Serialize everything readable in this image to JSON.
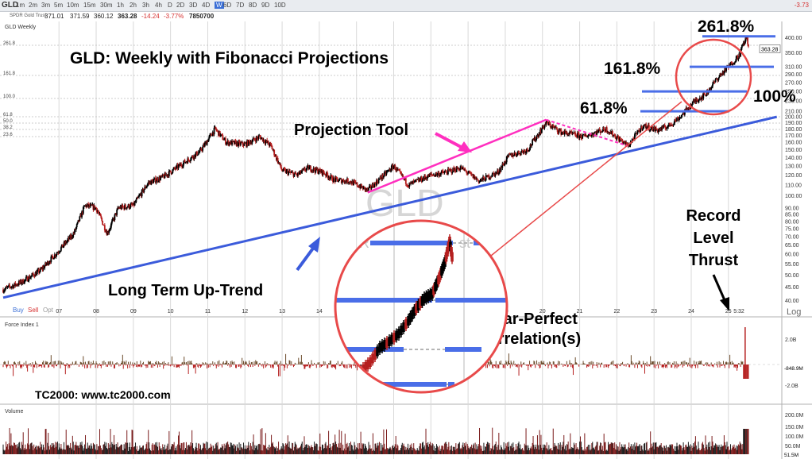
{
  "toolbar": {
    "symbol": "GLD",
    "timeframes": [
      "1m",
      "2m",
      "3m",
      "5m",
      "10m",
      "15m",
      "30m",
      "1h",
      "2h",
      "3h",
      "4h",
      "D",
      "2D",
      "3D",
      "4D",
      "W",
      "6D",
      "7D",
      "8D",
      "9D",
      "10D"
    ],
    "active_timeframe": "W",
    "right_value": "-3.73"
  },
  "quote": {
    "name": "SPDR Gold Trust",
    "open": "371.01",
    "high": "371.59",
    "low": "360.12",
    "close": "363.28",
    "change": "-14.24",
    "change_pct": "-3.77%",
    "volume": "7850700"
  },
  "pane_labels": {
    "price": "GLD Weekly",
    "force": "Force Index 1",
    "volume": "Volume"
  },
  "buy_sell": {
    "buy": "Buy",
    "sell": "Sell",
    "opt": "Opt"
  },
  "annotations": {
    "title": "GLD:  Weekly with Fibonacci Projections",
    "projection_tool": "Projection Tool",
    "long_term": "Long Term Up-Trend",
    "fib_2618": "261.8%",
    "fib_1618": "161.8%",
    "fib_618": "61.8%",
    "fib_100": "100%",
    "record_line1": "Record",
    "record_line2": "Level",
    "record_line3": "Thrust",
    "near_perfect_line1": "Near-Perfect",
    "near_perfect_line2": "Correlation(s)",
    "source": "TC2000:  www.tc2000.com",
    "watermark_symbol": "GLD",
    "watermark_name_partial": "SPDR",
    "watermark_name_tail": "st"
  },
  "colors": {
    "trendline": "#3b5bdb",
    "projection": "#ff2fbf",
    "fib_level": "#4a6ee8",
    "circle": "#e84a4a",
    "candle_up": "#000000",
    "candle_down": "#b51f1f",
    "price_box": "#d63030"
  },
  "chart_data": {
    "type": "candlestick",
    "title": "GLD:  Weekly with Fibonacci Projections",
    "x_tick_labels": [
      "07",
      "08",
      "09",
      "10",
      "11",
      "12",
      "13",
      "14",
      "15",
      "16",
      "17",
      "18",
      "19",
      "20",
      "21",
      "22",
      "23",
      "24",
      "25"
    ],
    "x_tick_years": [
      2007,
      2008,
      2009,
      2010,
      2011,
      2012,
      2013,
      2014,
      2015,
      2016,
      2017,
      2018,
      2019,
      2020,
      2021,
      2022,
      2023,
      2024,
      2025
    ],
    "x_last_label": "5:32",
    "y_scale": "log",
    "y_ticks": [
      400,
      350,
      310,
      290,
      270,
      250,
      230,
      210,
      200,
      190,
      180,
      170,
      160,
      150,
      140,
      130,
      120,
      110,
      100,
      90,
      85,
      80,
      75,
      70,
      65,
      60,
      55,
      50,
      45,
      40
    ],
    "y_tick_labels": [
      "400.00",
      "350.00",
      "310.00",
      "290.00",
      "270.00",
      "250.00",
      "230.00",
      "210.00",
      "200.00",
      "190.00",
      "180.00",
      "170.00",
      "160.00",
      "150.00",
      "140.00",
      "130.00",
      "120.00",
      "110.00",
      "100.00",
      "90.00",
      "85.00",
      "80.00",
      "75.00",
      "70.00",
      "65.00",
      "60.00",
      "55.00",
      "50.00",
      "45.00",
      "40.00"
    ],
    "y_axis_log_button": "Log",
    "last_price_label": "363.28",
    "price_path": [
      [
        2006.0,
        44
      ],
      [
        2006.5,
        47
      ],
      [
        2007.0,
        52
      ],
      [
        2007.5,
        62
      ],
      [
        2007.9,
        72
      ],
      [
        2008.2,
        92
      ],
      [
        2008.5,
        90
      ],
      [
        2008.8,
        72
      ],
      [
        2009.1,
        90
      ],
      [
        2009.5,
        92
      ],
      [
        2009.9,
        112
      ],
      [
        2010.3,
        118
      ],
      [
        2010.9,
        135
      ],
      [
        2011.3,
        148
      ],
      [
        2011.7,
        180
      ],
      [
        2012.0,
        160
      ],
      [
        2012.5,
        157
      ],
      [
        2012.9,
        168
      ],
      [
        2013.2,
        155
      ],
      [
        2013.5,
        125
      ],
      [
        2013.9,
        120
      ],
      [
        2014.2,
        128
      ],
      [
        2014.6,
        123
      ],
      [
        2014.9,
        115
      ],
      [
        2015.3,
        114
      ],
      [
        2015.8,
        105
      ],
      [
        2016.5,
        130
      ],
      [
        2016.9,
        110
      ],
      [
        2017.5,
        120
      ],
      [
        2017.9,
        123
      ],
      [
        2018.3,
        128
      ],
      [
        2018.8,
        114
      ],
      [
        2019.3,
        123
      ],
      [
        2019.6,
        142
      ],
      [
        2020.1,
        150
      ],
      [
        2020.6,
        190
      ],
      [
        2021.0,
        175
      ],
      [
        2021.6,
        168
      ],
      [
        2022.2,
        180
      ],
      [
        2022.8,
        155
      ],
      [
        2023.2,
        185
      ],
      [
        2023.6,
        178
      ],
      [
        2023.9,
        185
      ],
      [
        2024.2,
        200
      ],
      [
        2024.6,
        230
      ],
      [
        2024.9,
        245
      ],
      [
        2025.2,
        280
      ],
      [
        2025.5,
        310
      ],
      [
        2025.8,
        345
      ],
      [
        2025.9,
        380
      ],
      [
        2026.0,
        400
      ],
      [
        2026.05,
        363
      ]
    ],
    "up_trendline": [
      [
        2006.0,
        41
      ],
      [
        2026.8,
        200
      ]
    ],
    "projection_line": [
      [
        2015.8,
        103
      ],
      [
        2020.6,
        195
      ]
    ],
    "projection_retrace": [
      [
        2020.6,
        195
      ],
      [
        2022.8,
        155
      ]
    ],
    "fib_levels": [
      {
        "label": "61.8%",
        "value": 210
      },
      {
        "label": "100%",
        "value": 250
      },
      {
        "label": "161.8%",
        "value": 310
      },
      {
        "label": "261.8%",
        "value": 405
      }
    ],
    "left_fib_labels": [
      "261.8",
      "161.8",
      "100.0",
      "61.8",
      "50.0",
      "38.2",
      "23.6"
    ],
    "force_index": {
      "label": "Force Index 1",
      "y_tick_labels": [
        "2.0B",
        "-2.0B"
      ],
      "last_value_label": "-848.9M"
    },
    "volume": {
      "label": "Volume",
      "y_tick_labels": [
        "200.0M",
        "150.0M",
        "100.0M",
        "50.0M"
      ],
      "last_value_label": "51.5M"
    }
  }
}
